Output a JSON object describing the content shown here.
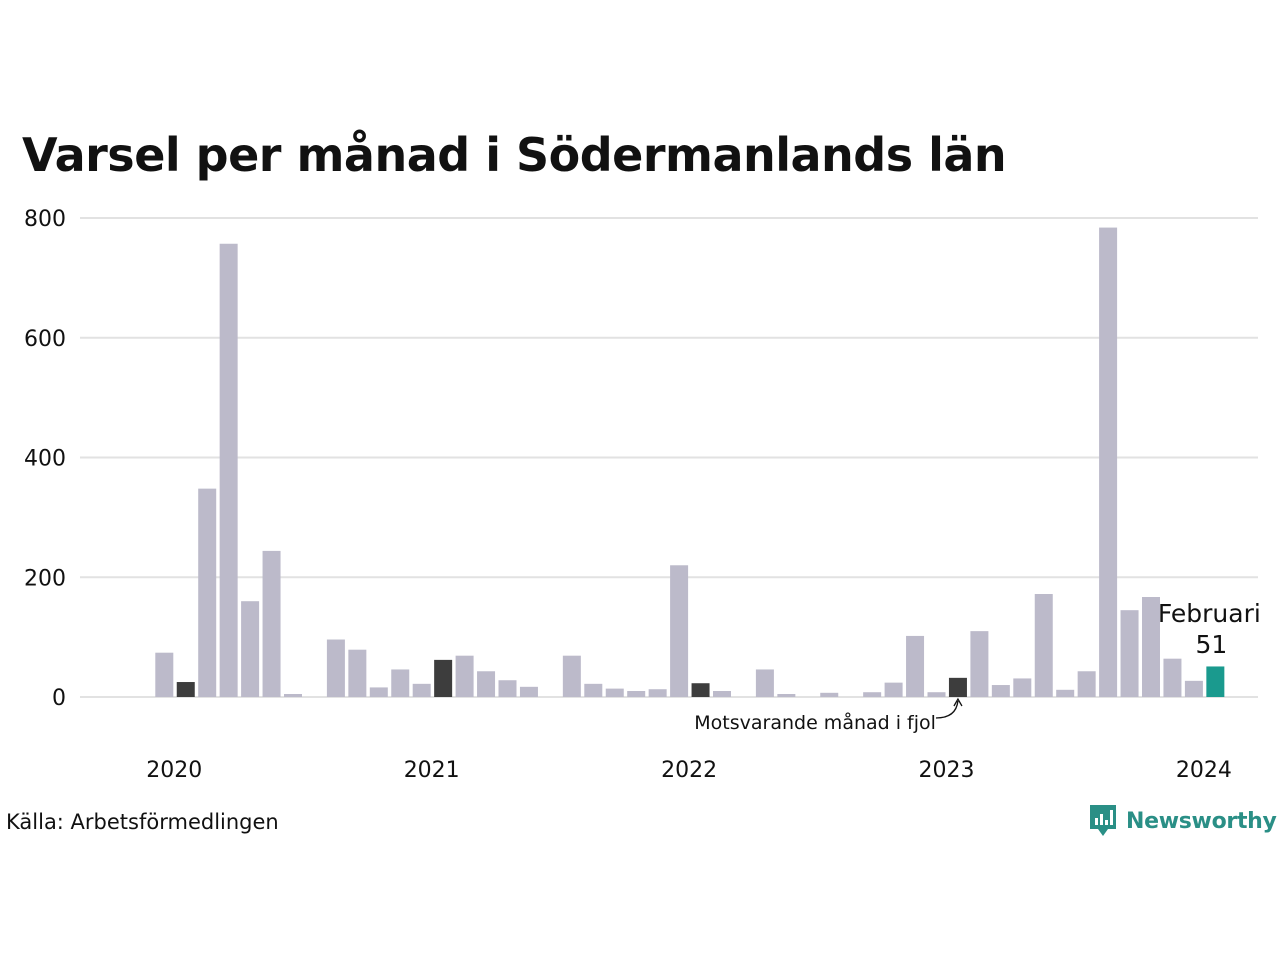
{
  "colors": {
    "bar": "#bcbaca",
    "bar_previous_year": "#3d3d3d",
    "bar_current": "#1a9a8e",
    "grid": "#e2e2e2",
    "brand": "#2a8f86"
  },
  "source": "Källa: Arbetsförmedlingen",
  "brand": {
    "name": "Newsworthy",
    "icon": "newsworthy-logo-icon"
  },
  "chart_data": {
    "type": "bar",
    "title": "Varsel per månad i Södermanlands län",
    "xlabel": "",
    "ylabel": "",
    "ylim": [
      0,
      800
    ],
    "yticks": [
      "0",
      "200",
      "400",
      "600",
      "800"
    ],
    "grid": true,
    "legend": "none",
    "x_ticks": [
      {
        "label": "2020",
        "month": "2020-01"
      },
      {
        "label": "2021",
        "month": "2021-01"
      },
      {
        "label": "2022",
        "month": "2022-01"
      },
      {
        "label": "2023",
        "month": "2023-01"
      },
      {
        "label": "2024",
        "month": "2024-01"
      }
    ],
    "categories": [
      "2019-09",
      "2019-10",
      "2019-11",
      "2019-12",
      "2020-01",
      "2020-02",
      "2020-03",
      "2020-04",
      "2020-05",
      "2020-06",
      "2020-07",
      "2020-08",
      "2020-09",
      "2020-10",
      "2020-11",
      "2020-12",
      "2021-01",
      "2021-02",
      "2021-03",
      "2021-04",
      "2021-05",
      "2021-06",
      "2021-07",
      "2021-08",
      "2021-09",
      "2021-10",
      "2021-11",
      "2021-12",
      "2022-01",
      "2022-02",
      "2022-03",
      "2022-04",
      "2022-05",
      "2022-06",
      "2022-07",
      "2022-08",
      "2022-09",
      "2022-10",
      "2022-11",
      "2022-12",
      "2023-01",
      "2023-02",
      "2023-03",
      "2023-04",
      "2023-05",
      "2023-06",
      "2023-07",
      "2023-08",
      "2023-09",
      "2023-10",
      "2023-11",
      "2023-12",
      "2024-01",
      "2024-02"
    ],
    "values": [
      null,
      null,
      null,
      null,
      74,
      25,
      348,
      757,
      160,
      244,
      5,
      0,
      96,
      79,
      16,
      46,
      22,
      62,
      69,
      43,
      28,
      17,
      0,
      69,
      22,
      14,
      10,
      13,
      220,
      23,
      10,
      0,
      46,
      5,
      0,
      7,
      0,
      8,
      24,
      102,
      8,
      32,
      110,
      20,
      31,
      172,
      12,
      43,
      784,
      145,
      167,
      64,
      27,
      51
    ],
    "previous_year_months": [
      "2020-02",
      "2021-02",
      "2022-02",
      "2023-02"
    ],
    "current_month": "2024-02",
    "annotations": [
      {
        "text": "Februari",
        "month": "2024-02"
      },
      {
        "text": "51",
        "month": "2024-02"
      },
      {
        "text": "Motsvarande månad i fjol",
        "month": "2023-02"
      }
    ]
  }
}
